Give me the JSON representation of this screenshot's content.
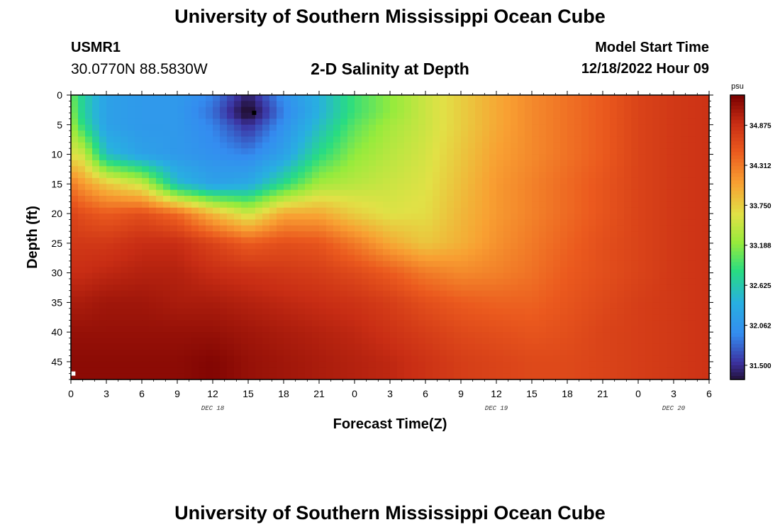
{
  "page": {
    "title_top": "University of Southern Mississippi Ocean Cube",
    "title_bottom": "University of Southern Mississippi Ocean Cube",
    "station": "USMR1",
    "coords": "30.0770N  88.5830W",
    "subtitle": "2-D Salinity at Depth",
    "model_start_label": "Model Start Time",
    "model_start_value": "12/18/2022 Hour 09"
  },
  "chart_data": {
    "type": "heatmap",
    "title": "2-D Salinity at Depth",
    "xlabel": "Forecast Time(Z)",
    "ylabel": "Depth (ft)",
    "units": "psu",
    "x_hours_range": [
      0,
      54
    ],
    "y_depth_range_ft": [
      0,
      48
    ],
    "x_tick_labels": [
      "0",
      "3",
      "6",
      "9",
      "12",
      "15",
      "18",
      "21",
      "0",
      "3",
      "6",
      "9",
      "12",
      "15",
      "18",
      "21",
      "0",
      "3",
      "6"
    ],
    "y_tick_labels": [
      "0",
      "5",
      "10",
      "15",
      "20",
      "25",
      "30",
      "35",
      "40",
      "45"
    ],
    "y_tick_values": [
      0,
      5,
      10,
      15,
      20,
      25,
      30,
      35,
      40,
      45
    ],
    "date_labels": [
      {
        "text": "DEC 18",
        "hour": 12
      },
      {
        "text": "DEC 19",
        "hour": 36
      },
      {
        "text": "DEC 20",
        "hour": 51
      }
    ],
    "colorbar": {
      "min": 31.3,
      "max": 35.3,
      "labels": [
        "34.875",
        "34.312",
        "33.750",
        "33.188",
        "32.625",
        "32.062",
        "31.500"
      ],
      "label_values": [
        34.875,
        34.312,
        33.75,
        33.188,
        32.625,
        32.062,
        31.5
      ]
    },
    "salinity_field": {
      "hours": [
        0,
        1,
        3,
        6,
        9,
        12,
        15,
        18,
        21,
        24,
        27,
        30,
        33,
        36,
        39,
        42,
        45,
        48,
        51,
        54
      ],
      "depths_ft": [
        0,
        3,
        5,
        10,
        15,
        20,
        25,
        30,
        35,
        40,
        45,
        48
      ],
      "values": [
        [
          33.1,
          32.7,
          32.2,
          32.1,
          32.1,
          31.9,
          31.4,
          32.0,
          32.4,
          32.9,
          33.2,
          33.5,
          33.75,
          34.0,
          34.2,
          34.35,
          34.5,
          34.7,
          34.8,
          34.85
        ],
        [
          33.2,
          32.7,
          32.2,
          32.1,
          32.1,
          31.8,
          31.2,
          31.9,
          32.4,
          32.9,
          33.2,
          33.5,
          33.75,
          34.0,
          34.2,
          34.35,
          34.5,
          34.7,
          34.8,
          34.85
        ],
        [
          33.3,
          32.8,
          32.2,
          32.1,
          32.1,
          31.9,
          31.5,
          32.0,
          32.5,
          33.0,
          33.3,
          33.5,
          33.75,
          34.0,
          34.2,
          34.35,
          34.5,
          34.7,
          34.8,
          34.85
        ],
        [
          33.6,
          33.5,
          32.5,
          32.2,
          32.1,
          32.0,
          31.9,
          32.2,
          32.8,
          33.2,
          33.4,
          33.55,
          33.8,
          34.05,
          34.2,
          34.35,
          34.5,
          34.7,
          34.8,
          34.85
        ],
        [
          34.3,
          34.1,
          33.8,
          33.5,
          32.5,
          32.2,
          32.3,
          32.8,
          33.3,
          33.4,
          33.5,
          33.6,
          33.85,
          34.1,
          34.25,
          34.4,
          34.55,
          34.7,
          34.8,
          34.85
        ],
        [
          34.7,
          34.6,
          34.5,
          34.6,
          34.4,
          33.9,
          33.5,
          34.0,
          34.0,
          33.75,
          33.6,
          33.65,
          33.9,
          34.1,
          34.25,
          34.4,
          34.55,
          34.7,
          34.8,
          34.85
        ],
        [
          34.8,
          34.8,
          34.8,
          34.9,
          34.9,
          34.7,
          34.5,
          34.6,
          34.55,
          34.3,
          34.0,
          33.8,
          33.95,
          34.15,
          34.3,
          34.45,
          34.6,
          34.7,
          34.8,
          34.85
        ],
        [
          34.9,
          34.9,
          34.95,
          35.0,
          35.0,
          34.9,
          34.85,
          34.8,
          34.75,
          34.65,
          34.5,
          34.3,
          34.2,
          34.25,
          34.35,
          34.5,
          34.6,
          34.7,
          34.8,
          34.85
        ],
        [
          35.05,
          35.05,
          35.1,
          35.1,
          35.05,
          35.05,
          35.0,
          34.95,
          34.9,
          34.85,
          34.75,
          34.6,
          34.5,
          34.45,
          34.45,
          34.55,
          34.65,
          34.75,
          34.8,
          34.85
        ],
        [
          35.15,
          35.15,
          35.15,
          35.15,
          35.15,
          35.15,
          35.1,
          35.05,
          35.0,
          34.95,
          34.85,
          34.75,
          34.65,
          34.6,
          34.55,
          34.6,
          34.7,
          34.75,
          34.8,
          34.85
        ],
        [
          35.2,
          35.2,
          35.2,
          35.2,
          35.2,
          35.25,
          35.15,
          35.1,
          35.05,
          35.0,
          34.95,
          34.85,
          34.75,
          34.7,
          34.65,
          34.65,
          34.7,
          34.75,
          34.8,
          34.85
        ],
        [
          35.2,
          35.2,
          35.2,
          35.2,
          35.2,
          35.25,
          35.15,
          35.1,
          35.05,
          35.0,
          34.95,
          34.85,
          34.75,
          34.7,
          34.65,
          34.65,
          34.7,
          34.75,
          34.8,
          34.85
        ]
      ]
    },
    "markers": [
      {
        "hour": 15.5,
        "depth_ft": 3,
        "color": "#000000"
      },
      {
        "hour": 0.2,
        "depth_ft": 47,
        "color": "#ffffff"
      }
    ]
  }
}
